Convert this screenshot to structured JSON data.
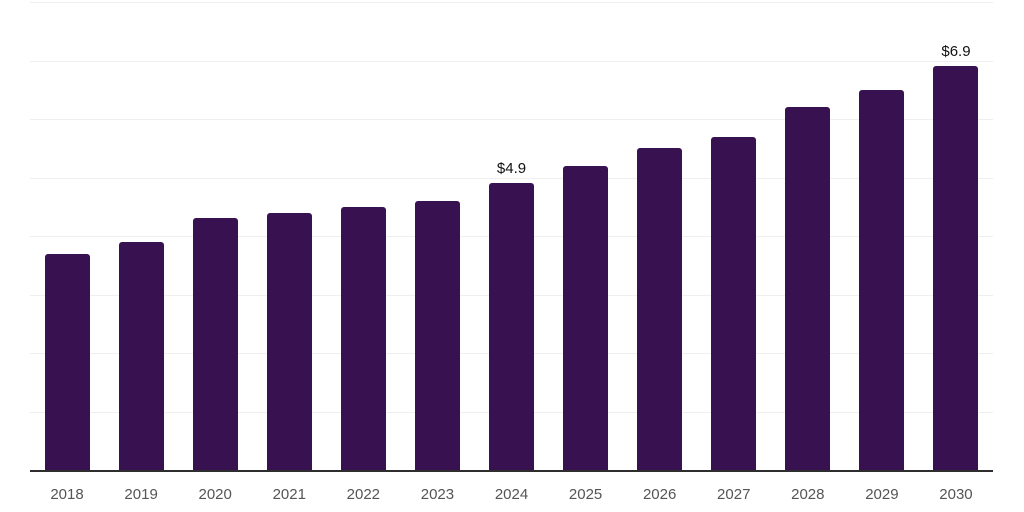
{
  "chart": {
    "colors": {
      "background": "#ffffff",
      "bar_color": "#371150",
      "grid_color": "#efefef",
      "axis_line_color": "#2e2e2e",
      "tick_label_color": "#555555",
      "value_label_color": "#111111"
    }
  },
  "chart_data": {
    "type": "bar",
    "title": "",
    "xlabel": "",
    "ylabel": "",
    "categories": [
      "2018",
      "2019",
      "2020",
      "2021",
      "2022",
      "2023",
      "2024",
      "2025",
      "2026",
      "2027",
      "2028",
      "2029",
      "2030"
    ],
    "values": [
      3.7,
      3.9,
      4.3,
      4.4,
      4.5,
      4.6,
      4.9,
      5.2,
      5.5,
      5.7,
      6.2,
      6.5,
      6.9
    ],
    "bar_labels": {
      "2024": "$4.9",
      "2030": "$6.9"
    },
    "value_prefix": "$",
    "ylim": [
      0,
      8
    ],
    "gridline_step": 1,
    "grid": true,
    "legend": false
  }
}
